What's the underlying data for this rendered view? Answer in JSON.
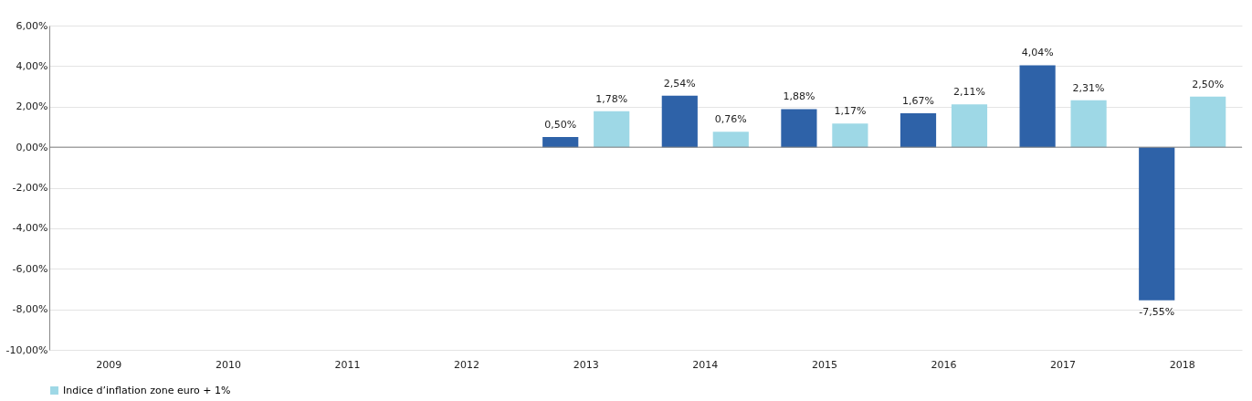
{
  "chart_data": {
    "type": "bar",
    "categories": [
      "2009",
      "2010",
      "2011",
      "2012",
      "2013",
      "2014",
      "2015",
      "2016",
      "2017",
      "2018"
    ],
    "series": [
      {
        "color": "#2e62a8",
        "values": [
          null,
          null,
          null,
          null,
          0.5,
          2.54,
          1.88,
          1.67,
          4.04,
          -7.55
        ],
        "value_labels": [
          null,
          null,
          null,
          null,
          "0,50%",
          "2,54%",
          "1,88%",
          "1,67%",
          "4,04%",
          "-7,55%"
        ]
      },
      {
        "name": "Indice d’inflation zone euro + 1%",
        "color": "#9ed8e6",
        "values": [
          null,
          null,
          null,
          null,
          1.78,
          0.76,
          1.17,
          2.11,
          2.31,
          2.5
        ],
        "value_labels": [
          null,
          null,
          null,
          null,
          "1,78%",
          "0,76%",
          "1,17%",
          "2,11%",
          "2,31%",
          "2,50%"
        ]
      }
    ],
    "ylim": [
      -10,
      6
    ],
    "yticks": [
      {
        "value": -10,
        "label": "-10,00%"
      },
      {
        "value": -8,
        "label": "-8,00%"
      },
      {
        "value": -6,
        "label": "-6,00%"
      },
      {
        "value": -4,
        "label": "-4,00%"
      },
      {
        "value": -2,
        "label": "-2,00%"
      },
      {
        "value": 0,
        "label": "0,00%"
      },
      {
        "value": 2,
        "label": "2,00%"
      },
      {
        "value": 4,
        "label": "4,00%"
      },
      {
        "value": 6,
        "label": "6,00%"
      }
    ],
    "ref_lines": [
      {
        "axis": "y",
        "value": 0,
        "color": "#808080"
      }
    ],
    "grid": true,
    "legend": "bottom"
  }
}
